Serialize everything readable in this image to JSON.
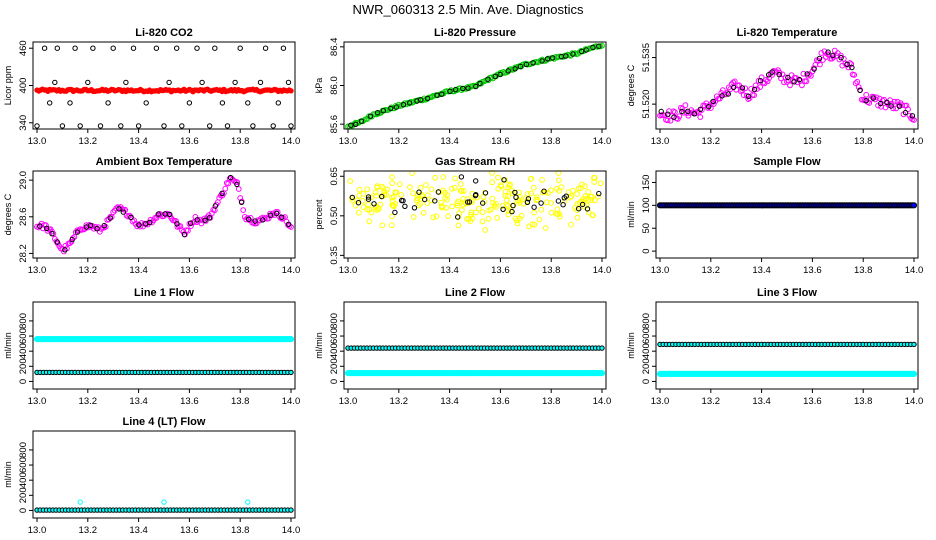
{
  "title": "NWR_060313  2.5 Min. Ave. Diagnostics",
  "colors": {
    "black": "#000000",
    "red": "#ff0000",
    "green": "#00cc00",
    "magenta": "#ff00ff",
    "yellow": "#ffff00",
    "blue": "#0000ff",
    "cyan": "#00ffff"
  },
  "chart_data": [
    {
      "id": "co2",
      "type": "scatter",
      "title": "Li-820 CO2",
      "ylabel": "Licor ppm",
      "xlim": [
        13.0,
        14.0
      ],
      "ylim": [
        330,
        470
      ],
      "xticks": [
        "13.0",
        "13.2",
        "13.4",
        "13.6",
        "13.8",
        "14.0"
      ],
      "yticks": [
        {
          "v": 340,
          "t": "340"
        },
        {
          "v": 400,
          "t": "400"
        },
        {
          "v": 460,
          "t": "460"
        }
      ],
      "series": [
        {
          "kind": "band",
          "color": "#ff0000",
          "y": 392,
          "jitter": 2
        },
        {
          "kind": "open",
          "color": "#000000",
          "points": [
            [
              13.0,
              335
            ],
            [
              13.03,
              460
            ],
            [
              13.05,
              372
            ],
            [
              13.07,
              405
            ],
            [
              13.08,
              460
            ],
            [
              13.1,
              335
            ],
            [
              13.13,
              372
            ],
            [
              13.15,
              460
            ],
            [
              13.17,
              335
            ],
            [
              13.2,
              405
            ],
            [
              13.22,
              460
            ],
            [
              13.25,
              335
            ],
            [
              13.28,
              372
            ],
            [
              13.3,
              460
            ],
            [
              13.33,
              335
            ],
            [
              13.35,
              405
            ],
            [
              13.38,
              460
            ],
            [
              13.4,
              335
            ],
            [
              13.43,
              372
            ],
            [
              13.47,
              460
            ],
            [
              13.5,
              335
            ],
            [
              13.52,
              405
            ],
            [
              13.55,
              460
            ],
            [
              13.57,
              335
            ],
            [
              13.6,
              372
            ],
            [
              13.63,
              460
            ],
            [
              13.65,
              405
            ],
            [
              13.68,
              335
            ],
            [
              13.7,
              460
            ],
            [
              13.73,
              372
            ],
            [
              13.75,
              335
            ],
            [
              13.78,
              405
            ],
            [
              13.8,
              460
            ],
            [
              13.83,
              372
            ],
            [
              13.85,
              335
            ],
            [
              13.88,
              405
            ],
            [
              13.9,
              460
            ],
            [
              13.93,
              335
            ],
            [
              13.95,
              372
            ],
            [
              13.97,
              460
            ],
            [
              13.99,
              405
            ],
            [
              14.0,
              335
            ]
          ]
        }
      ]
    },
    {
      "id": "pres",
      "type": "scatter",
      "title": "Li-820 Pressure",
      "ylabel": "kPa",
      "xlim": [
        13.0,
        14.0
      ],
      "ylim": [
        85.55,
        86.45
      ],
      "xticks": [
        "13.0",
        "13.2",
        "13.4",
        "13.6",
        "13.8",
        "14.0"
      ],
      "yticks": [
        {
          "v": 85.6,
          "t": "85.6"
        },
        {
          "v": 86.0,
          "t": "86.0"
        },
        {
          "v": 86.4,
          "t": "86.4"
        }
      ],
      "series": [
        {
          "kind": "trend",
          "fill": "#00cc00",
          "stroke": "#000000",
          "knots": [
            [
              13.0,
              85.58
            ],
            [
              13.05,
              85.62
            ],
            [
              13.1,
              85.7
            ],
            [
              13.2,
              85.79
            ],
            [
              13.3,
              85.86
            ],
            [
              13.4,
              85.94
            ],
            [
              13.5,
              85.99
            ],
            [
              13.55,
              86.06
            ],
            [
              13.6,
              86.12
            ],
            [
              13.7,
              86.22
            ],
            [
              13.8,
              86.28
            ],
            [
              13.9,
              86.33
            ],
            [
              13.95,
              86.38
            ],
            [
              14.0,
              86.42
            ]
          ],
          "noise": 0.012
        }
      ]
    },
    {
      "id": "ltemp",
      "type": "scatter",
      "title": "Li-820 Temperature",
      "ylabel": "degrees C",
      "xlim": [
        13.0,
        14.0
      ],
      "ylim": [
        51.512,
        51.54
      ],
      "xticks": [
        "13.0",
        "13.2",
        "13.4",
        "13.6",
        "13.8",
        "14.0"
      ],
      "yticks": [
        {
          "v": 51.52,
          "t": "51.520"
        },
        {
          "v": 51.535,
          "t": "51.535"
        }
      ],
      "series": [
        {
          "kind": "trend",
          "fill": "#ff00ff",
          "stroke": "#000000",
          "knots": [
            [
              13.0,
              51.517
            ],
            [
              13.05,
              51.516
            ],
            [
              13.1,
              51.518
            ],
            [
              13.15,
              51.517
            ],
            [
              13.2,
              51.52
            ],
            [
              13.25,
              51.523
            ],
            [
              13.3,
              51.526
            ],
            [
              13.35,
              51.523
            ],
            [
              13.4,
              51.527
            ],
            [
              13.45,
              51.53
            ],
            [
              13.5,
              51.528
            ],
            [
              13.55,
              51.527
            ],
            [
              13.6,
              51.531
            ],
            [
              13.65,
              51.537
            ],
            [
              13.7,
              51.535
            ],
            [
              13.75,
              51.532
            ],
            [
              13.8,
              51.522
            ],
            [
              13.85,
              51.521
            ],
            [
              13.9,
              51.52
            ],
            [
              13.95,
              51.519
            ],
            [
              14.0,
              51.516
            ]
          ],
          "noise": 0.0018
        }
      ]
    },
    {
      "id": "amb",
      "type": "scatter",
      "title": "Ambient Box Temperature",
      "ylabel": "degrees C",
      "xlim": [
        13.0,
        14.0
      ],
      "ylim": [
        28.15,
        29.1
      ],
      "xticks": [
        "13.0",
        "13.2",
        "13.4",
        "13.6",
        "13.8",
        "14.0"
      ],
      "yticks": [
        {
          "v": 28.2,
          "t": "28.2"
        },
        {
          "v": 28.6,
          "t": "28.6"
        },
        {
          "v": 29.0,
          "t": "29.0"
        }
      ],
      "series": [
        {
          "kind": "trend",
          "fill": "#ff00ff",
          "stroke": "#000000",
          "knots": [
            [
              13.0,
              28.5
            ],
            [
              13.03,
              28.5
            ],
            [
              13.06,
              28.42
            ],
            [
              13.1,
              28.23
            ],
            [
              13.13,
              28.3
            ],
            [
              13.17,
              28.48
            ],
            [
              13.21,
              28.5
            ],
            [
              13.25,
              28.45
            ],
            [
              13.28,
              28.55
            ],
            [
              13.32,
              28.7
            ],
            [
              13.36,
              28.63
            ],
            [
              13.4,
              28.5
            ],
            [
              13.44,
              28.54
            ],
            [
              13.48,
              28.62
            ],
            [
              13.52,
              28.63
            ],
            [
              13.55,
              28.52
            ],
            [
              13.58,
              28.42
            ],
            [
              13.62,
              28.58
            ],
            [
              13.65,
              28.55
            ],
            [
              13.68,
              28.6
            ],
            [
              13.72,
              28.8
            ],
            [
              13.76,
              29.02
            ],
            [
              13.79,
              28.95
            ],
            [
              13.82,
              28.6
            ],
            [
              13.86,
              28.55
            ],
            [
              13.9,
              28.58
            ],
            [
              13.93,
              28.65
            ],
            [
              13.97,
              28.6
            ],
            [
              14.0,
              28.48
            ]
          ],
          "noise": 0.03
        }
      ]
    },
    {
      "id": "rh",
      "type": "scatter",
      "title": "Gas Stream RH",
      "ylabel": "percent",
      "xlim": [
        13.0,
        14.0
      ],
      "ylim": [
        0.34,
        0.67
      ],
      "xticks": [
        "13.0",
        "13.2",
        "13.4",
        "13.6",
        "13.8",
        "14.0"
      ],
      "yticks": [
        {
          "v": 0.35,
          "t": "0.35"
        },
        {
          "v": 0.5,
          "t": "0.50"
        },
        {
          "v": 0.65,
          "t": "0.65"
        }
      ],
      "series": [
        {
          "kind": "cloud",
          "fill": "#ffff00",
          "stroke": "#000000",
          "center": 0.56,
          "spread": 0.055
        }
      ]
    },
    {
      "id": "sflow",
      "type": "scatter",
      "title": "Sample Flow",
      "ylabel": "ml/min",
      "xlim": [
        13.0,
        14.0
      ],
      "ylim": [
        -15,
        175
      ],
      "xticks": [
        "13.0",
        "13.2",
        "13.4",
        "13.6",
        "13.8",
        "14.0"
      ],
      "yticks": [
        {
          "v": 0,
          "t": "0"
        },
        {
          "v": 50,
          "t": "50"
        },
        {
          "v": 100,
          "t": "100"
        },
        {
          "v": 150,
          "t": "150"
        }
      ],
      "series": [
        {
          "kind": "flat",
          "fill": "#0000ff",
          "stroke": "#000000",
          "y": 100
        }
      ]
    },
    {
      "id": "l1",
      "type": "scatter",
      "title": "Line 1 Flow",
      "ylabel": "ml/min",
      "xlim": [
        13.0,
        14.0
      ],
      "ylim": [
        -100,
        1050
      ],
      "xticks": [
        "13.0",
        "13.2",
        "13.4",
        "13.6",
        "13.8",
        "14.0"
      ],
      "yticks": [
        {
          "v": 0,
          "t": "0"
        },
        {
          "v": 200,
          "t": "200"
        },
        {
          "v": 400,
          "t": "400"
        },
        {
          "v": 600,
          "t": "600"
        },
        {
          "v": 800,
          "t": "800"
        }
      ],
      "series": [
        {
          "kind": "flat",
          "fill": "#00ffff",
          "stroke": "#00ffff",
          "y": 560
        },
        {
          "kind": "flat",
          "fill": "#00ffff",
          "stroke": "#000000",
          "y": 120,
          "sparse": true
        }
      ]
    },
    {
      "id": "l2",
      "type": "scatter",
      "title": "Line 2 Flow",
      "ylabel": "ml/min",
      "xlim": [
        13.0,
        14.0
      ],
      "ylim": [
        -100,
        1050
      ],
      "xticks": [
        "13.0",
        "13.2",
        "13.4",
        "13.6",
        "13.8",
        "14.0"
      ],
      "yticks": [
        {
          "v": 0,
          "t": "0"
        },
        {
          "v": 200,
          "t": "200"
        },
        {
          "v": 400,
          "t": "400"
        },
        {
          "v": 600,
          "t": "600"
        },
        {
          "v": 800,
          "t": "800"
        }
      ],
      "series": [
        {
          "kind": "flat",
          "fill": "#00ffff",
          "stroke": "#00ffff",
          "y": 110
        },
        {
          "kind": "flat",
          "fill": "#00ffff",
          "stroke": "#000000",
          "y": 440,
          "sparse": true
        }
      ]
    },
    {
      "id": "l3",
      "type": "scatter",
      "title": "Line 3 Flow",
      "ylabel": "ml/min",
      "xlim": [
        13.0,
        14.0
      ],
      "ylim": [
        -100,
        1050
      ],
      "xticks": [
        "13.0",
        "13.2",
        "13.4",
        "13.6",
        "13.8",
        "14.0"
      ],
      "yticks": [
        {
          "v": 0,
          "t": "0"
        },
        {
          "v": 200,
          "t": "200"
        },
        {
          "v": 400,
          "t": "400"
        },
        {
          "v": 600,
          "t": "600"
        },
        {
          "v": 800,
          "t": "800"
        }
      ],
      "series": [
        {
          "kind": "flat",
          "fill": "#00ffff",
          "stroke": "#00ffff",
          "y": 100
        },
        {
          "kind": "flat",
          "fill": "#00ffff",
          "stroke": "#000000",
          "y": 490,
          "sparse": true
        }
      ]
    },
    {
      "id": "l4",
      "type": "scatter",
      "title": "Line 4 (LT) Flow",
      "ylabel": "ml/min",
      "xlim": [
        13.0,
        14.0
      ],
      "ylim": [
        -100,
        1050
      ],
      "xticks": [
        "13.0",
        "13.2",
        "13.4",
        "13.6",
        "13.8",
        "14.0"
      ],
      "yticks": [
        {
          "v": 0,
          "t": "0"
        },
        {
          "v": 200,
          "t": "200"
        },
        {
          "v": 400,
          "t": "400"
        },
        {
          "v": 600,
          "t": "600"
        },
        {
          "v": 800,
          "t": "800"
        }
      ],
      "series": [
        {
          "kind": "flat",
          "fill": "#00ffff",
          "stroke": "#000000",
          "y": 5,
          "sparse": true
        },
        {
          "kind": "open",
          "color": "#00ffff",
          "points": [
            [
              13.17,
              110
            ],
            [
              13.5,
              110
            ],
            [
              13.83,
              110
            ]
          ]
        }
      ]
    }
  ]
}
